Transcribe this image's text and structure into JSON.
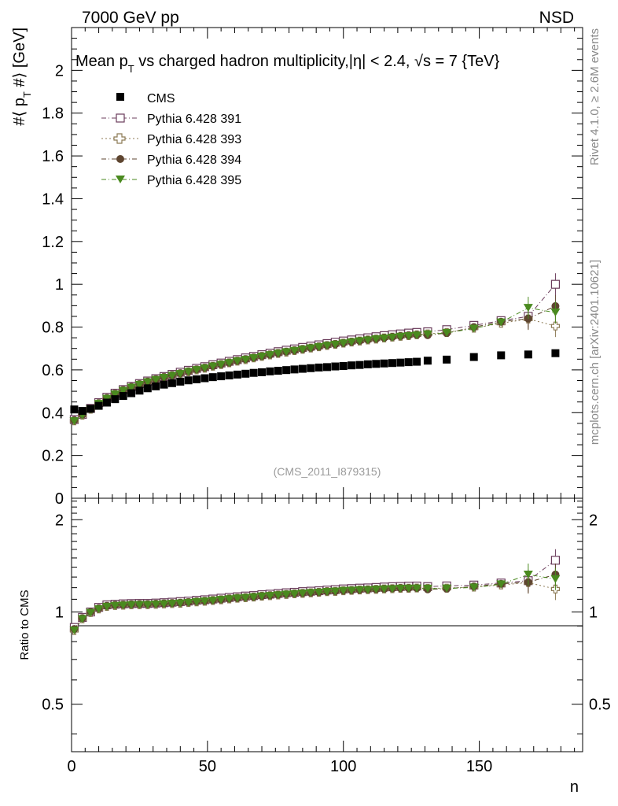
{
  "header": {
    "left_label": "7000 GeV pp",
    "right_label": "NSD"
  },
  "side_text": {
    "upper": "Rivet 4.1.0, ≥ 2.6M events",
    "lower": "mcplots.cern.ch [arXiv:2401.10621]"
  },
  "colors": {
    "cms": "#000000",
    "p391": "#6b3d5c",
    "p393": "#8c7a55",
    "p394": "#5e4530",
    "p395": "#4a8a1f",
    "watermark": "#9a9a9a",
    "side_text": "#8a8a8a"
  },
  "chart_data": [
    {
      "type": "scatter",
      "title": "Mean p_T vs charged hadron multiplicity, |η| < 2.4, √s = 7 {TeV}",
      "ylabel": "#⟨ p_T #⟩ [GeV]",
      "xlabel": "n",
      "xlim": [
        0,
        188
      ],
      "ylim": [
        0,
        2.2
      ],
      "yticks": [
        "0",
        "0.2",
        "0.4",
        "0.6",
        "0.8",
        "1",
        "1.2",
        "1.4",
        "1.6",
        "1.8",
        "2"
      ],
      "annotation": "(CMS_2011_I879315)",
      "legend_position": "top-left",
      "series": [
        {
          "name": "CMS",
          "marker": "square-filled",
          "x": [
            1,
            4,
            7,
            10,
            13,
            16,
            19,
            22,
            25,
            28,
            31,
            34,
            37,
            40,
            43,
            46,
            49,
            52,
            55,
            58,
            61,
            64,
            67,
            70,
            73,
            76,
            79,
            82,
            85,
            88,
            91,
            94,
            97,
            100,
            103,
            106,
            109,
            112,
            115,
            118,
            121,
            124,
            127,
            131,
            138,
            148,
            158,
            168,
            178
          ],
          "values": [
            0.415,
            0.408,
            0.418,
            0.432,
            0.447,
            0.463,
            0.478,
            0.491,
            0.503,
            0.514,
            0.523,
            0.531,
            0.538,
            0.545,
            0.551,
            0.556,
            0.561,
            0.566,
            0.57,
            0.574,
            0.578,
            0.582,
            0.586,
            0.589,
            0.593,
            0.596,
            0.599,
            0.602,
            0.605,
            0.608,
            0.611,
            0.613,
            0.616,
            0.618,
            0.621,
            0.623,
            0.626,
            0.628,
            0.63,
            0.632,
            0.634,
            0.636,
            0.638,
            0.643,
            0.648,
            0.66,
            0.668,
            0.672,
            0.678
          ]
        },
        {
          "name": "Pythia 6.428 391",
          "marker": "square-open",
          "x": [
            1,
            4,
            7,
            10,
            13,
            16,
            19,
            22,
            25,
            28,
            31,
            34,
            37,
            40,
            43,
            46,
            49,
            52,
            55,
            58,
            61,
            64,
            67,
            70,
            73,
            76,
            79,
            82,
            85,
            88,
            91,
            94,
            97,
            100,
            103,
            106,
            109,
            112,
            115,
            118,
            121,
            124,
            127,
            131,
            138,
            148,
            158,
            168,
            178
          ],
          "values": [
            0.368,
            0.392,
            0.42,
            0.447,
            0.472,
            0.491,
            0.508,
            0.523,
            0.536,
            0.548,
            0.559,
            0.569,
            0.579,
            0.589,
            0.598,
            0.607,
            0.615,
            0.624,
            0.632,
            0.64,
            0.648,
            0.656,
            0.663,
            0.671,
            0.678,
            0.685,
            0.692,
            0.698,
            0.705,
            0.711,
            0.717,
            0.723,
            0.729,
            0.735,
            0.74,
            0.745,
            0.75,
            0.755,
            0.76,
            0.764,
            0.768,
            0.772,
            0.775,
            0.778,
            0.788,
            0.808,
            0.83,
            0.85,
            1.0
          ]
        },
        {
          "name": "Pythia 6.428 393",
          "marker": "cross-open",
          "x": [
            1,
            4,
            7,
            10,
            13,
            16,
            19,
            22,
            25,
            28,
            31,
            34,
            37,
            40,
            43,
            46,
            49,
            52,
            55,
            58,
            61,
            64,
            67,
            70,
            73,
            76,
            79,
            82,
            85,
            88,
            91,
            94,
            97,
            100,
            103,
            106,
            109,
            112,
            115,
            118,
            121,
            124,
            127,
            131,
            138,
            148,
            158,
            168,
            178
          ],
          "values": [
            0.362,
            0.388,
            0.416,
            0.442,
            0.466,
            0.486,
            0.503,
            0.518,
            0.531,
            0.543,
            0.554,
            0.564,
            0.573,
            0.582,
            0.591,
            0.6,
            0.608,
            0.617,
            0.625,
            0.633,
            0.641,
            0.648,
            0.656,
            0.663,
            0.67,
            0.677,
            0.683,
            0.69,
            0.696,
            0.702,
            0.708,
            0.714,
            0.719,
            0.725,
            0.73,
            0.735,
            0.74,
            0.744,
            0.749,
            0.753,
            0.757,
            0.76,
            0.764,
            0.768,
            0.775,
            0.795,
            0.818,
            0.838,
            0.805
          ]
        },
        {
          "name": "Pythia 6.428 394",
          "marker": "circle-filled",
          "x": [
            1,
            4,
            7,
            10,
            13,
            16,
            19,
            22,
            25,
            28,
            31,
            34,
            37,
            40,
            43,
            46,
            49,
            52,
            55,
            58,
            61,
            64,
            67,
            70,
            73,
            76,
            79,
            82,
            85,
            88,
            91,
            94,
            97,
            100,
            103,
            106,
            109,
            112,
            115,
            118,
            121,
            124,
            127,
            131,
            138,
            148,
            158,
            168,
            178
          ],
          "values": [
            0.365,
            0.39,
            0.418,
            0.444,
            0.468,
            0.488,
            0.505,
            0.52,
            0.533,
            0.545,
            0.556,
            0.566,
            0.575,
            0.584,
            0.593,
            0.602,
            0.61,
            0.618,
            0.626,
            0.634,
            0.642,
            0.65,
            0.657,
            0.664,
            0.671,
            0.678,
            0.685,
            0.691,
            0.697,
            0.703,
            0.709,
            0.715,
            0.72,
            0.726,
            0.731,
            0.736,
            0.741,
            0.745,
            0.75,
            0.754,
            0.758,
            0.761,
            0.764,
            0.762,
            0.772,
            0.8,
            0.825,
            0.84,
            0.898
          ]
        },
        {
          "name": "Pythia 6.428 395",
          "marker": "triangle-down-filled",
          "x": [
            1,
            4,
            7,
            10,
            13,
            16,
            19,
            22,
            25,
            28,
            31,
            34,
            37,
            40,
            43,
            46,
            49,
            52,
            55,
            58,
            61,
            64,
            67,
            70,
            73,
            76,
            79,
            82,
            85,
            88,
            91,
            94,
            97,
            100,
            103,
            106,
            109,
            112,
            115,
            118,
            121,
            124,
            127,
            131,
            138,
            148,
            158,
            168,
            178
          ],
          "values": [
            0.36,
            0.387,
            0.415,
            0.441,
            0.465,
            0.485,
            0.502,
            0.517,
            0.53,
            0.542,
            0.553,
            0.563,
            0.572,
            0.581,
            0.59,
            0.599,
            0.607,
            0.616,
            0.624,
            0.632,
            0.64,
            0.647,
            0.655,
            0.662,
            0.669,
            0.676,
            0.683,
            0.689,
            0.695,
            0.701,
            0.707,
            0.713,
            0.718,
            0.724,
            0.729,
            0.734,
            0.738,
            0.743,
            0.747,
            0.751,
            0.755,
            0.758,
            0.761,
            0.766,
            0.773,
            0.793,
            0.822,
            0.89,
            0.868
          ]
        }
      ]
    },
    {
      "type": "scatter",
      "title": "",
      "ylabel": "Ratio to CMS",
      "xlabel": "n",
      "xlim": [
        0,
        188
      ],
      "ylim": [
        0.35,
        2.35
      ],
      "yticks": [
        "0.5",
        "1",
        "2"
      ],
      "xticks": [
        "0",
        "50",
        "100",
        "150"
      ],
      "reference_line": 1,
      "series": [
        {
          "name": "Pythia 6.428 391",
          "x": [
            1,
            4,
            7,
            10,
            13,
            16,
            19,
            22,
            25,
            28,
            31,
            34,
            37,
            40,
            43,
            46,
            49,
            52,
            55,
            58,
            61,
            64,
            67,
            70,
            73,
            76,
            79,
            82,
            85,
            88,
            91,
            94,
            97,
            100,
            103,
            106,
            109,
            112,
            115,
            118,
            121,
            124,
            127,
            131,
            138,
            148,
            158,
            168,
            178
          ],
          "values": [
            0.89,
            0.96,
            1.0,
            1.035,
            1.055,
            1.06,
            1.063,
            1.065,
            1.066,
            1.066,
            1.069,
            1.072,
            1.076,
            1.081,
            1.085,
            1.092,
            1.096,
            1.102,
            1.109,
            1.115,
            1.121,
            1.127,
            1.131,
            1.139,
            1.143,
            1.149,
            1.155,
            1.159,
            1.165,
            1.169,
            1.173,
            1.179,
            1.183,
            1.189,
            1.192,
            1.196,
            1.198,
            1.202,
            1.206,
            1.209,
            1.211,
            1.214,
            1.215,
            1.21,
            1.216,
            1.224,
            1.243,
            1.265,
            1.475
          ]
        },
        {
          "name": "Pythia 6.428 393",
          "x": [
            1,
            4,
            7,
            10,
            13,
            16,
            19,
            22,
            25,
            28,
            31,
            34,
            37,
            40,
            43,
            46,
            49,
            52,
            55,
            58,
            61,
            64,
            67,
            70,
            73,
            76,
            79,
            82,
            85,
            88,
            91,
            94,
            97,
            100,
            103,
            106,
            109,
            112,
            115,
            118,
            121,
            124,
            127,
            131,
            138,
            148,
            158,
            168,
            178
          ],
          "values": [
            0.87,
            0.95,
            0.995,
            1.023,
            1.043,
            1.05,
            1.052,
            1.055,
            1.056,
            1.056,
            1.059,
            1.062,
            1.065,
            1.068,
            1.073,
            1.079,
            1.084,
            1.09,
            1.096,
            1.103,
            1.109,
            1.113,
            1.119,
            1.126,
            1.13,
            1.136,
            1.14,
            1.146,
            1.15,
            1.155,
            1.159,
            1.165,
            1.167,
            1.173,
            1.176,
            1.18,
            1.182,
            1.185,
            1.189,
            1.191,
            1.194,
            1.195,
            1.197,
            1.194,
            1.196,
            1.205,
            1.225,
            1.247,
            1.188
          ]
        },
        {
          "name": "Pythia 6.428 394",
          "x": [
            1,
            4,
            7,
            10,
            13,
            16,
            19,
            22,
            25,
            28,
            31,
            34,
            37,
            40,
            43,
            46,
            49,
            52,
            55,
            58,
            61,
            64,
            67,
            70,
            73,
            76,
            79,
            82,
            85,
            88,
            91,
            94,
            97,
            100,
            103,
            106,
            109,
            112,
            115,
            118,
            121,
            124,
            127,
            131,
            138,
            148,
            158,
            168,
            178
          ],
          "values": [
            0.88,
            0.955,
            1.0,
            1.028,
            1.047,
            1.054,
            1.056,
            1.059,
            1.06,
            1.06,
            1.063,
            1.066,
            1.069,
            1.072,
            1.076,
            1.083,
            1.087,
            1.092,
            1.098,
            1.105,
            1.111,
            1.117,
            1.121,
            1.127,
            1.132,
            1.138,
            1.144,
            1.148,
            1.152,
            1.156,
            1.16,
            1.166,
            1.169,
            1.175,
            1.177,
            1.181,
            1.184,
            1.186,
            1.19,
            1.193,
            1.196,
            1.196,
            1.197,
            1.185,
            1.191,
            1.212,
            1.235,
            1.25,
            1.325
          ]
        },
        {
          "name": "Pythia 6.428 395",
          "x": [
            1,
            4,
            7,
            10,
            13,
            16,
            19,
            22,
            25,
            28,
            31,
            34,
            37,
            40,
            43,
            46,
            49,
            52,
            55,
            58,
            61,
            64,
            67,
            70,
            73,
            76,
            79,
            82,
            85,
            88,
            91,
            94,
            97,
            100,
            103,
            106,
            109,
            112,
            115,
            118,
            121,
            124,
            127,
            131,
            138,
            148,
            158,
            168,
            178
          ],
          "values": [
            0.87,
            0.948,
            0.993,
            1.021,
            1.04,
            1.047,
            1.05,
            1.053,
            1.054,
            1.054,
            1.057,
            1.06,
            1.063,
            1.066,
            1.071,
            1.077,
            1.082,
            1.088,
            1.095,
            1.101,
            1.107,
            1.111,
            1.117,
            1.124,
            1.128,
            1.134,
            1.14,
            1.144,
            1.149,
            1.153,
            1.157,
            1.163,
            1.166,
            1.172,
            1.174,
            1.178,
            1.179,
            1.183,
            1.186,
            1.188,
            1.191,
            1.192,
            1.193,
            1.191,
            1.193,
            1.202,
            1.231,
            1.324,
            1.28
          ]
        }
      ]
    }
  ]
}
